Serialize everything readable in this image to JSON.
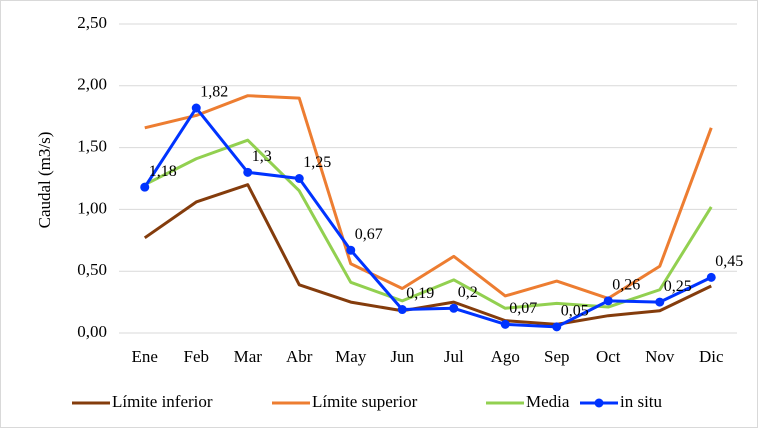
{
  "chart_data": {
    "type": "line",
    "y_label": "Caudal (m3/s)",
    "categories": [
      "Ene",
      "Feb",
      "Mar",
      "Abr",
      "May",
      "Jun",
      "Jul",
      "Ago",
      "Sep",
      "Oct",
      "Nov",
      "Dic"
    ],
    "series": [
      {
        "name": "Límite inferior",
        "color": "#843c0c",
        "values": [
          0.77,
          1.06,
          1.2,
          0.39,
          0.25,
          0.18,
          0.25,
          0.1,
          0.07,
          0.14,
          0.18,
          0.38
        ]
      },
      {
        "name": "Límite superior",
        "color": "#ed7d31",
        "values": [
          1.66,
          1.76,
          1.92,
          1.9,
          0.56,
          0.36,
          0.62,
          0.3,
          0.42,
          0.28,
          0.54,
          1.66
        ]
      },
      {
        "name": "Media",
        "color": "#92d050",
        "values": [
          1.2,
          1.41,
          1.56,
          1.15,
          0.41,
          0.26,
          0.43,
          0.2,
          0.24,
          0.21,
          0.35,
          1.02
        ]
      },
      {
        "name": "in situ",
        "color": "#0033ff",
        "markers": true,
        "values": [
          1.18,
          1.82,
          1.3,
          1.25,
          0.67,
          0.19,
          0.2,
          0.07,
          0.05,
          0.26,
          0.25,
          0.45
        ],
        "value_labels": [
          "1,18",
          "1,82",
          "1,3",
          "1,25",
          "0,67",
          "0,19",
          "0,2",
          "0,07",
          "0,05",
          "0,26",
          "0,25",
          "0,45"
        ]
      }
    ],
    "ylim": [
      0,
      2.5
    ],
    "yticks": [
      {
        "value": 0,
        "label": "0,00"
      },
      {
        "value": 0.5,
        "label": "0,50"
      },
      {
        "value": 1,
        "label": "1,00"
      },
      {
        "value": 1.5,
        "label": "1,50"
      },
      {
        "value": 2,
        "label": "2,00"
      },
      {
        "value": 2.5,
        "label": "2,50"
      }
    ],
    "grid": true,
    "legend": "bottom"
  }
}
